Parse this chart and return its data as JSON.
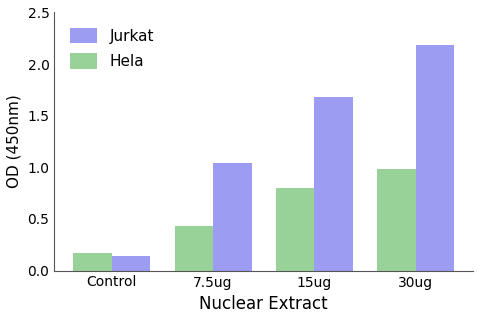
{
  "categories": [
    "Control",
    "7.5ug",
    "15ug",
    "30ug"
  ],
  "jurkat_values": [
    0.14,
    1.04,
    1.68,
    2.18
  ],
  "hela_values": [
    0.17,
    0.43,
    0.8,
    0.98
  ],
  "jurkat_color": "#7b7bef",
  "hela_color": "#77c477",
  "jurkat_label": "Jurkat",
  "hela_label": "Hela",
  "xlabel": "Nuclear Extract",
  "ylabel": "OD (450nm)",
  "ylim": [
    0,
    2.5
  ],
  "yticks": [
    0.0,
    0.5,
    1.0,
    1.5,
    2.0,
    2.5
  ],
  "bar_width": 0.38,
  "background_color": "#ffffff"
}
